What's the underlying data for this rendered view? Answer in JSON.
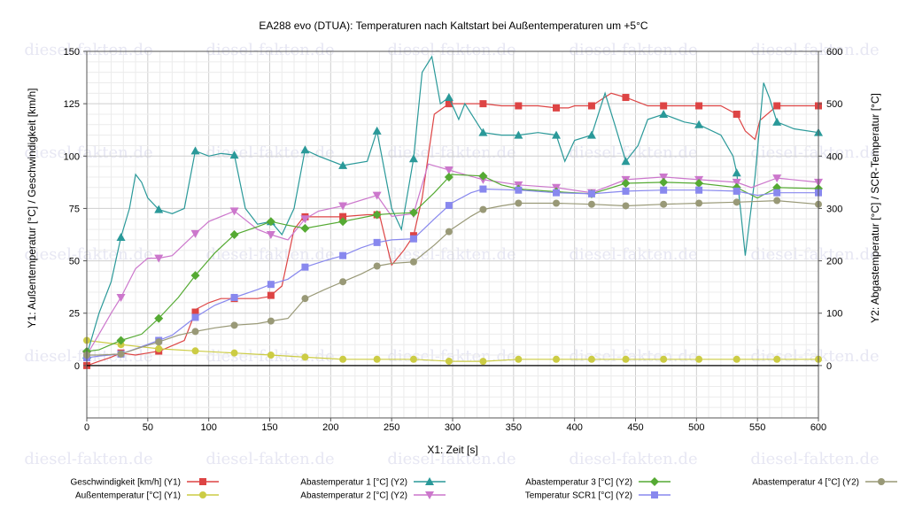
{
  "chart_data": {
    "type": "line",
    "title": "EA288 evo (DTUA): Temperaturen nach Kaltstart bei Außentemperaturen um +5°C",
    "xlabel": "X1: Zeit [s]",
    "ylabel_left": "Y1: Außentemperatur [°C] / Geschwindigkeit [km/h]",
    "ylabel_right": "Y2: Abgastemperatur [°C] / SCR-Temperatur [°C]",
    "xlim": [
      0,
      600
    ],
    "ylim_left": [
      -25,
      150
    ],
    "ylim_right": [
      -100,
      600
    ],
    "x_ticks": [
      0,
      50,
      100,
      150,
      200,
      250,
      300,
      350,
      400,
      450,
      500,
      550,
      600
    ],
    "y_left_ticks": [
      0,
      25,
      50,
      75,
      100,
      125,
      150
    ],
    "y_right_ticks": [
      0,
      100,
      200,
      300,
      400,
      500,
      600
    ],
    "grid": true,
    "legend_position": "bottom",
    "watermark": "diesel-fakten.de",
    "series": [
      {
        "name": "Geschwindigkeit [km/h] (Y1)",
        "axis": "left",
        "color": "#dd4444",
        "marker": "square",
        "x": [
          0,
          10,
          20,
          28,
          40,
          50,
          60,
          80,
          90,
          100,
          110,
          120,
          130,
          140,
          150,
          160,
          170,
          178,
          190,
          208,
          230,
          240,
          250,
          260,
          268,
          275,
          285,
          297,
          310,
          325,
          340,
          354,
          370,
          385,
          395,
          400,
          414,
          430,
          442,
          460,
          475,
          500,
          520,
          533,
          540,
          548,
          552,
          566,
          580,
          600
        ],
        "y": [
          0,
          2,
          4,
          6,
          5,
          6,
          7,
          12,
          27,
          30,
          32,
          32,
          32,
          32,
          33,
          38,
          65,
          71,
          71,
          71,
          72,
          72,
          48,
          55,
          62,
          80,
          120,
          125,
          125,
          125,
          124,
          124,
          124,
          123,
          123,
          124,
          124,
          130,
          128,
          124,
          124,
          124,
          124,
          120,
          112,
          108,
          117,
          124,
          124,
          124
        ]
      },
      {
        "name": "Außentemperatur [°C] (Y1)",
        "axis": "left",
        "color": "#cccc44",
        "marker": "circle",
        "x": [
          0,
          28,
          59,
          89,
          121,
          151,
          179,
          210,
          238,
          268,
          299,
          325,
          354,
          385,
          414,
          442,
          473,
          502,
          533,
          566,
          600
        ],
        "y": [
          12,
          10,
          8,
          7,
          6,
          5,
          4,
          3,
          3,
          3,
          2,
          2,
          3,
          3,
          3,
          3,
          3,
          3,
          3,
          3,
          3
        ]
      },
      {
        "name": "Abastemperatur 1 [°C] (Y2)",
        "axis": "right",
        "color": "#2a9999",
        "marker": "triangle-up",
        "x": [
          0,
          10,
          20,
          28,
          35,
          40,
          45,
          50,
          59,
          70,
          80,
          89,
          100,
          110,
          121,
          130,
          140,
          151,
          160,
          170,
          179,
          190,
          210,
          230,
          238,
          250,
          258,
          268,
          275,
          283,
          290,
          297,
          305,
          310,
          325,
          340,
          354,
          370,
          385,
          392,
          400,
          414,
          425,
          433,
          442,
          452,
          460,
          473,
          490,
          502,
          520,
          530,
          533,
          540,
          548,
          555,
          560,
          566,
          580,
          600
        ],
        "y": [
          20,
          100,
          160,
          245,
          300,
          365,
          350,
          320,
          298,
          290,
          300,
          410,
          400,
          405,
          402,
          300,
          270,
          275,
          250,
          300,
          412,
          400,
          382,
          390,
          448,
          300,
          260,
          395,
          560,
          590,
          500,
          512,
          470,
          500,
          445,
          440,
          440,
          445,
          440,
          390,
          430,
          440,
          520,
          460,
          390,
          420,
          470,
          480,
          465,
          460,
          440,
          400,
          368,
          210,
          360,
          540,
          510,
          465,
          452,
          445
        ]
      },
      {
        "name": "Abastemperatur 2 [°C] (Y2)",
        "axis": "right",
        "color": "#cc77cc",
        "marker": "triangle-down",
        "x": [
          0,
          10,
          20,
          28,
          40,
          50,
          59,
          70,
          89,
          100,
          121,
          140,
          151,
          165,
          179,
          190,
          210,
          238,
          250,
          268,
          280,
          299,
          325,
          354,
          385,
          414,
          442,
          473,
          502,
          533,
          545,
          566,
          600
        ],
        "y": [
          20,
          60,
          100,
          130,
          185,
          205,
          205,
          210,
          252,
          275,
          295,
          260,
          250,
          240,
          280,
          295,
          305,
          325,
          285,
          290,
          385,
          372,
          355,
          345,
          340,
          330,
          355,
          360,
          355,
          350,
          340,
          358,
          350
        ]
      },
      {
        "name": "Abastemperatur 3 [°C] (Y2)",
        "axis": "right",
        "color": "#55aa33",
        "marker": "diamond",
        "x": [
          0,
          10,
          28,
          45,
          59,
          75,
          89,
          105,
          121,
          140,
          151,
          165,
          179,
          210,
          238,
          250,
          268,
          285,
          299,
          325,
          340,
          354,
          385,
          414,
          442,
          473,
          502,
          533,
          550,
          566,
          600
        ],
        "y": [
          27,
          30,
          48,
          60,
          90,
          130,
          172,
          215,
          250,
          265,
          275,
          268,
          262,
          275,
          288,
          290,
          292,
          330,
          365,
          362,
          345,
          337,
          332,
          328,
          348,
          350,
          348,
          340,
          320,
          340,
          338
        ]
      },
      {
        "name": "Temperatur SCR1 [°C] (Y2)",
        "axis": "right",
        "color": "#8888ee",
        "marker": "square",
        "x": [
          0,
          10,
          28,
          40,
          59,
          70,
          89,
          105,
          121,
          140,
          151,
          165,
          179,
          195,
          210,
          225,
          238,
          250,
          268,
          285,
          299,
          315,
          325,
          354,
          385,
          414,
          442,
          473,
          502,
          533,
          550,
          566,
          600
        ],
        "y": [
          15,
          18,
          22,
          32,
          48,
          58,
          92,
          115,
          130,
          145,
          155,
          165,
          188,
          200,
          210,
          225,
          235,
          240,
          242,
          280,
          310,
          330,
          337,
          335,
          330,
          328,
          333,
          335,
          335,
          333,
          325,
          330,
          330
        ]
      },
      {
        "name": "Abastemperatur 4 [°C] (Y2)",
        "axis": "right",
        "color": "#999977",
        "marker": "circle",
        "x": [
          0,
          10,
          28,
          45,
          59,
          75,
          89,
          105,
          121,
          140,
          151,
          165,
          179,
          195,
          210,
          225,
          238,
          250,
          268,
          285,
          299,
          315,
          325,
          340,
          354,
          385,
          414,
          442,
          473,
          502,
          533,
          566,
          600
        ],
        "y": [
          20,
          20,
          22,
          35,
          45,
          58,
          65,
          72,
          77,
          80,
          85,
          90,
          128,
          145,
          160,
          175,
          190,
          195,
          198,
          230,
          260,
          285,
          298,
          305,
          310,
          310,
          308,
          305,
          308,
          310,
          312,
          315,
          308
        ]
      }
    ]
  }
}
